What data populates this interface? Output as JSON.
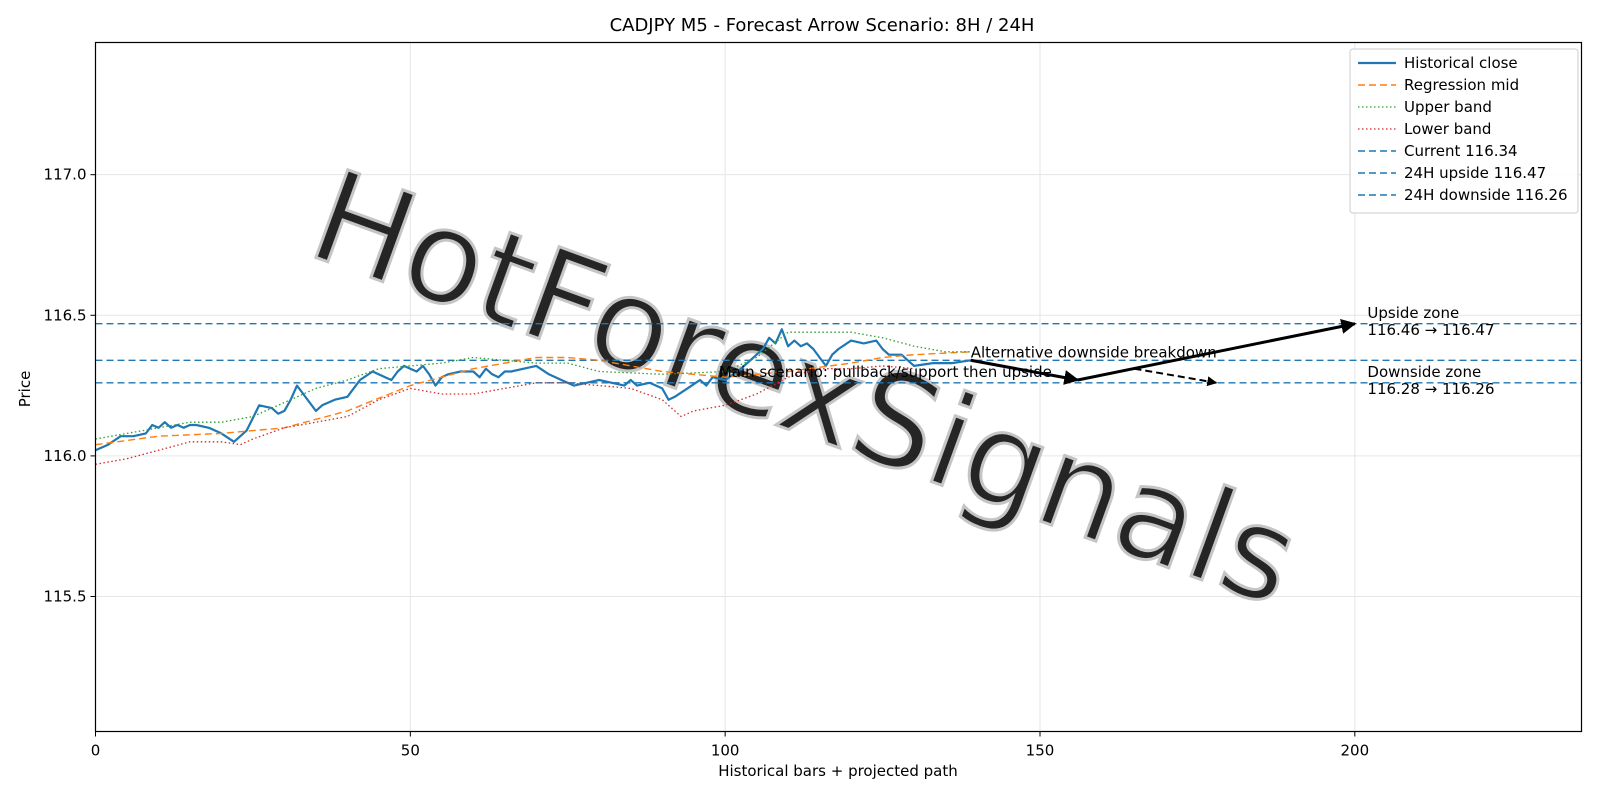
{
  "chart_data": {
    "type": "line",
    "title": "CADJPY M5 - Forecast Arrow Scenario: 8H / 24H",
    "xlabel": "Historical bars + projected path",
    "ylabel": "Price",
    "xlim": [
      0,
      236
    ],
    "ylim": [
      115.02,
      117.47
    ],
    "x_ticks": [
      0,
      50,
      100,
      150,
      200
    ],
    "y_ticks": [
      115.5,
      116.0,
      116.5,
      117.0
    ],
    "x_tick_labels": [
      "0",
      "50",
      "100",
      "150",
      "200"
    ],
    "y_tick_labels": [
      "115.5",
      "116.0",
      "116.5",
      "117.0"
    ],
    "grid": true,
    "legend_position": "top-right",
    "watermark": "HotForexSignals",
    "colors": {
      "historical": "#1f77b4",
      "regression": "#ff7f0e",
      "upper": "#2ca02c",
      "lower": "#d62728",
      "levels": "#1f77b4",
      "arrows": "#000000"
    },
    "series": [
      {
        "name": "Historical close",
        "style": "solid",
        "x": [
          0,
          2,
          4,
          6,
          8,
          9,
          10,
          11,
          12,
          13,
          14,
          15,
          16,
          18,
          20,
          22,
          24,
          26,
          28,
          29,
          30,
          31,
          32,
          33,
          34,
          35,
          36,
          37,
          38,
          40,
          42,
          44,
          46,
          47,
          48,
          49,
          50,
          51,
          52,
          53,
          54,
          55,
          56,
          58,
          60,
          61,
          62,
          63,
          64,
          65,
          66,
          68,
          70,
          72,
          74,
          76,
          78,
          80,
          82,
          84,
          85,
          86,
          88,
          90,
          91,
          92,
          94,
          96,
          97,
          98,
          100,
          102,
          104,
          106,
          107,
          108,
          109,
          110,
          111,
          112,
          113,
          114,
          115,
          116,
          117,
          118,
          120,
          122,
          124,
          125,
          126,
          128,
          130,
          133,
          136,
          139
        ],
        "y": [
          116.02,
          116.04,
          116.07,
          116.07,
          116.08,
          116.11,
          116.1,
          116.12,
          116.1,
          116.11,
          116.1,
          116.11,
          116.11,
          116.1,
          116.08,
          116.05,
          116.09,
          116.18,
          116.17,
          116.15,
          116.16,
          116.2,
          116.25,
          116.22,
          116.19,
          116.16,
          116.18,
          116.19,
          116.2,
          116.21,
          116.27,
          116.3,
          116.28,
          116.27,
          116.3,
          116.32,
          116.31,
          116.3,
          116.32,
          116.29,
          116.25,
          116.28,
          116.29,
          116.3,
          116.3,
          116.28,
          116.31,
          116.29,
          116.28,
          116.3,
          116.3,
          116.31,
          116.32,
          116.29,
          116.27,
          116.25,
          116.26,
          116.27,
          116.26,
          116.25,
          116.27,
          116.25,
          116.26,
          116.24,
          116.2,
          116.21,
          116.24,
          116.27,
          116.25,
          116.28,
          116.27,
          116.3,
          116.34,
          116.38,
          116.42,
          116.4,
          116.45,
          116.39,
          116.41,
          116.39,
          116.4,
          116.38,
          116.35,
          116.32,
          116.36,
          116.38,
          116.41,
          116.4,
          116.41,
          116.38,
          116.36,
          116.36,
          116.32,
          116.33,
          116.33,
          116.34
        ]
      },
      {
        "name": "Regression mid",
        "style": "dashed",
        "x": [
          0,
          10,
          20,
          30,
          40,
          50,
          60,
          70,
          75,
          80,
          90,
          100,
          110,
          120,
          125,
          130,
          139
        ],
        "y": [
          116.04,
          116.07,
          116.08,
          116.1,
          116.16,
          116.25,
          116.31,
          116.35,
          116.35,
          116.34,
          116.3,
          116.28,
          116.3,
          116.33,
          116.35,
          116.36,
          116.37
        ]
      },
      {
        "name": "Upper band",
        "style": "dotted",
        "x": [
          0,
          10,
          15,
          20,
          25,
          30,
          35,
          40,
          45,
          50,
          55,
          60,
          65,
          70,
          75,
          80,
          90,
          100,
          105,
          110,
          115,
          120,
          125,
          130,
          135,
          139
        ],
        "y": [
          116.06,
          116.1,
          116.12,
          116.12,
          116.14,
          116.19,
          116.24,
          116.27,
          116.31,
          116.32,
          116.33,
          116.35,
          116.34,
          116.33,
          116.33,
          116.3,
          116.29,
          116.3,
          116.35,
          116.44,
          116.44,
          116.44,
          116.42,
          116.39,
          116.37,
          116.37
        ]
      },
      {
        "name": "Lower band",
        "style": "dotted",
        "x": [
          0,
          5,
          10,
          15,
          20,
          23,
          25,
          30,
          35,
          40,
          45,
          50,
          55,
          60,
          65,
          70,
          75,
          80,
          85,
          90,
          93,
          95,
          100,
          105,
          110,
          115,
          120,
          125,
          130
        ],
        "y": [
          115.97,
          115.99,
          116.02,
          116.05,
          116.05,
          116.04,
          116.06,
          116.1,
          116.12,
          116.14,
          116.2,
          116.24,
          116.22,
          116.22,
          116.24,
          116.26,
          116.26,
          116.25,
          116.24,
          116.2,
          116.14,
          116.16,
          116.18,
          116.22,
          116.28,
          116.31,
          116.31,
          116.32,
          116.31
        ]
      },
      {
        "name": "Current 116.34",
        "style": "hline",
        "y": 116.34
      },
      {
        "name": "24H upside 116.47",
        "style": "hline",
        "y": 116.47
      },
      {
        "name": "24H downside 116.26",
        "style": "hline",
        "y": 116.26
      }
    ],
    "arrows": [
      {
        "from": [
          139,
          116.34
        ],
        "to": [
          156,
          116.27
        ],
        "style": "solid"
      },
      {
        "from": [
          156,
          116.27
        ],
        "to": [
          200,
          116.47
        ],
        "style": "solid"
      },
      {
        "from": [
          165,
          116.31
        ],
        "to": [
          178,
          116.26
        ],
        "style": "dashed"
      }
    ],
    "annotations": [
      {
        "lines": [
          "Main scenario: pullback/support then upside"
        ],
        "x": 99,
        "y": 116.28
      },
      {
        "lines": [
          "Alternative downside breakdown"
        ],
        "x": 139,
        "y": 116.35
      },
      {
        "lines": [
          "Upside zone",
          "116.46 → 116.47"
        ],
        "x": 202,
        "y": 116.49
      },
      {
        "lines": [
          "Downside zone",
          "116.28 → 116.26"
        ],
        "x": 202,
        "y": 116.28
      }
    ]
  }
}
